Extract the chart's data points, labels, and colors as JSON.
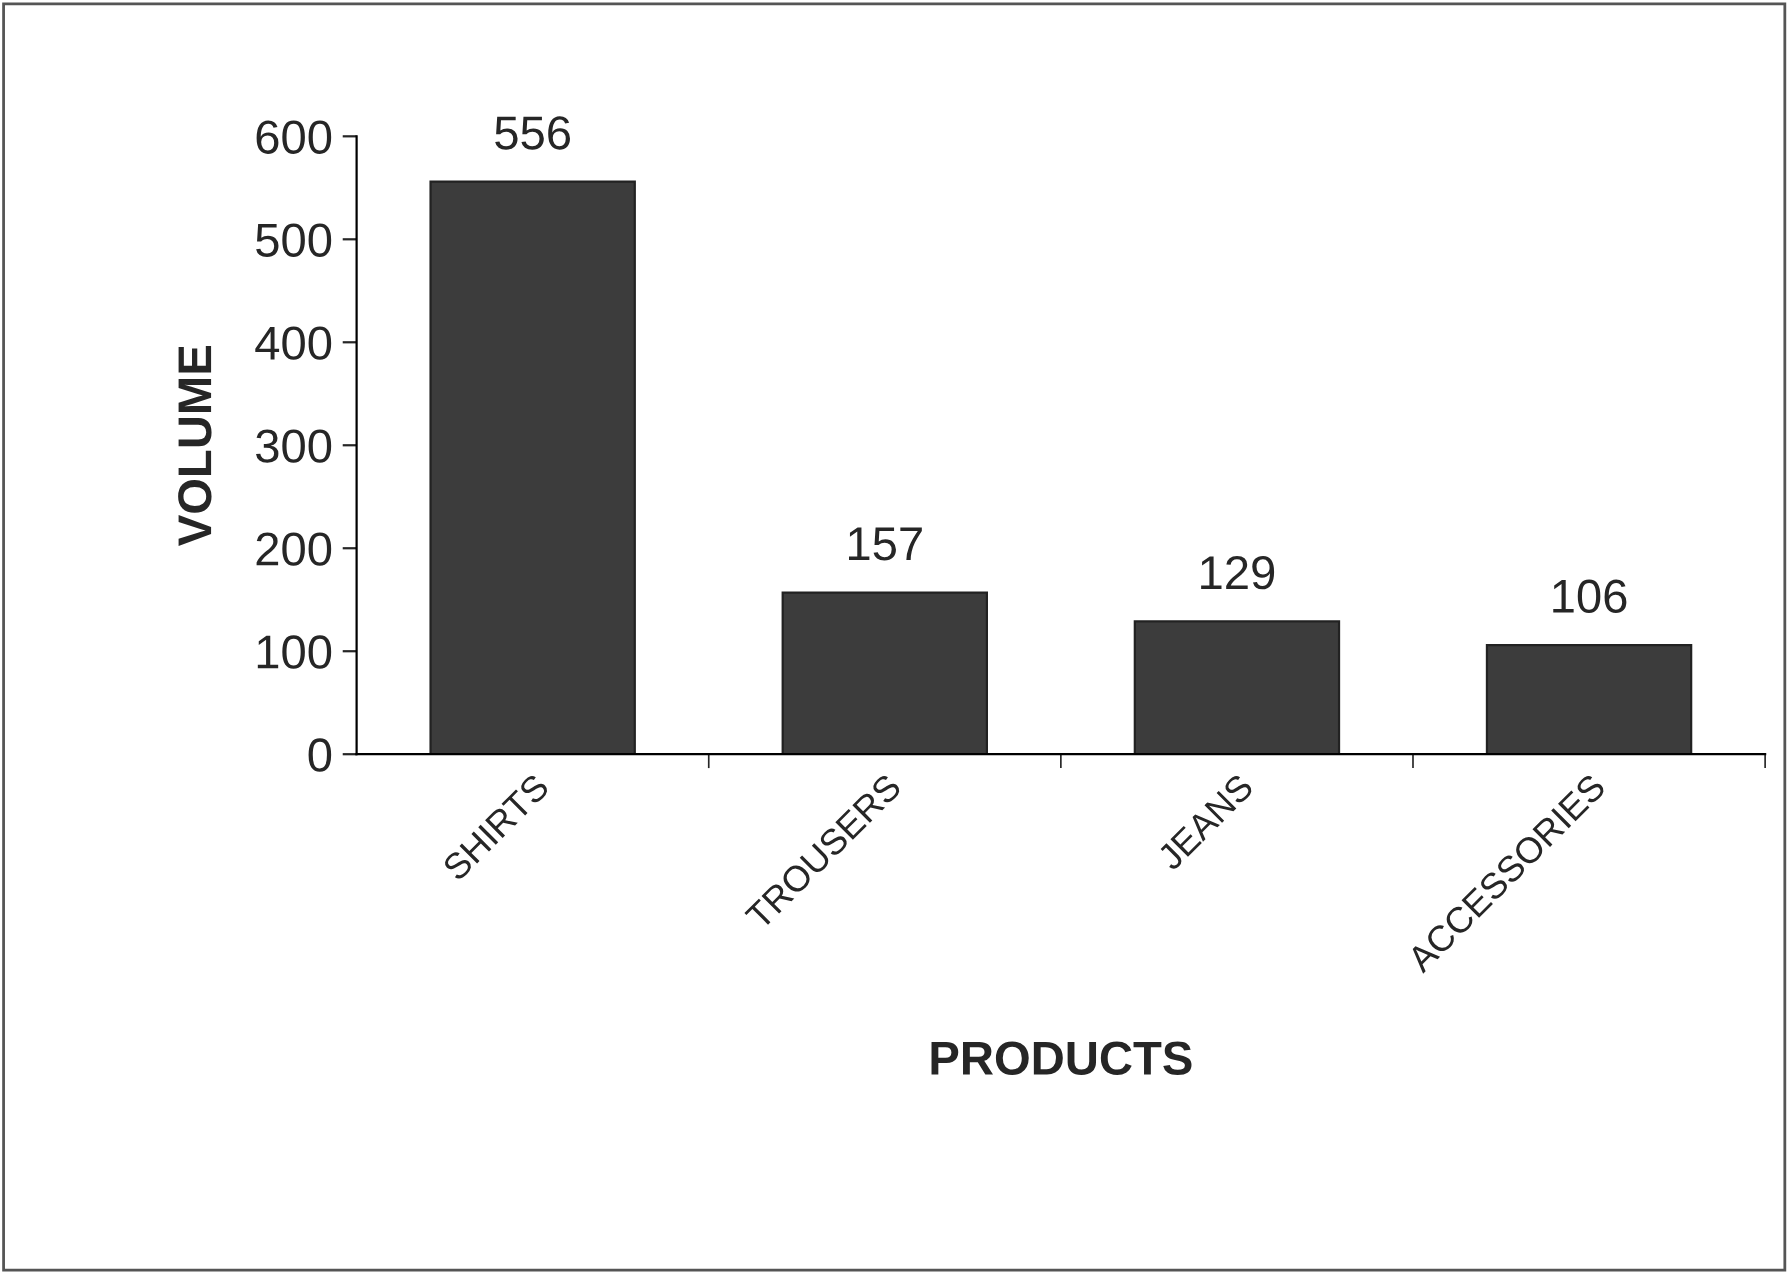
{
  "chart_data": {
    "type": "bar",
    "xlabel": "PRODUCTS",
    "ylabel": "VOLUME",
    "categories": [
      "SHIRTS",
      "TROUSERS",
      "JEANS",
      "ACCESSORIES"
    ],
    "values": [
      556,
      157,
      129,
      106
    ],
    "color": "#3c3c3c",
    "ylim": [
      0,
      600
    ],
    "yticks": [
      0,
      100,
      200,
      300,
      400,
      500,
      600
    ],
    "data_labels": true,
    "grid": false
  }
}
